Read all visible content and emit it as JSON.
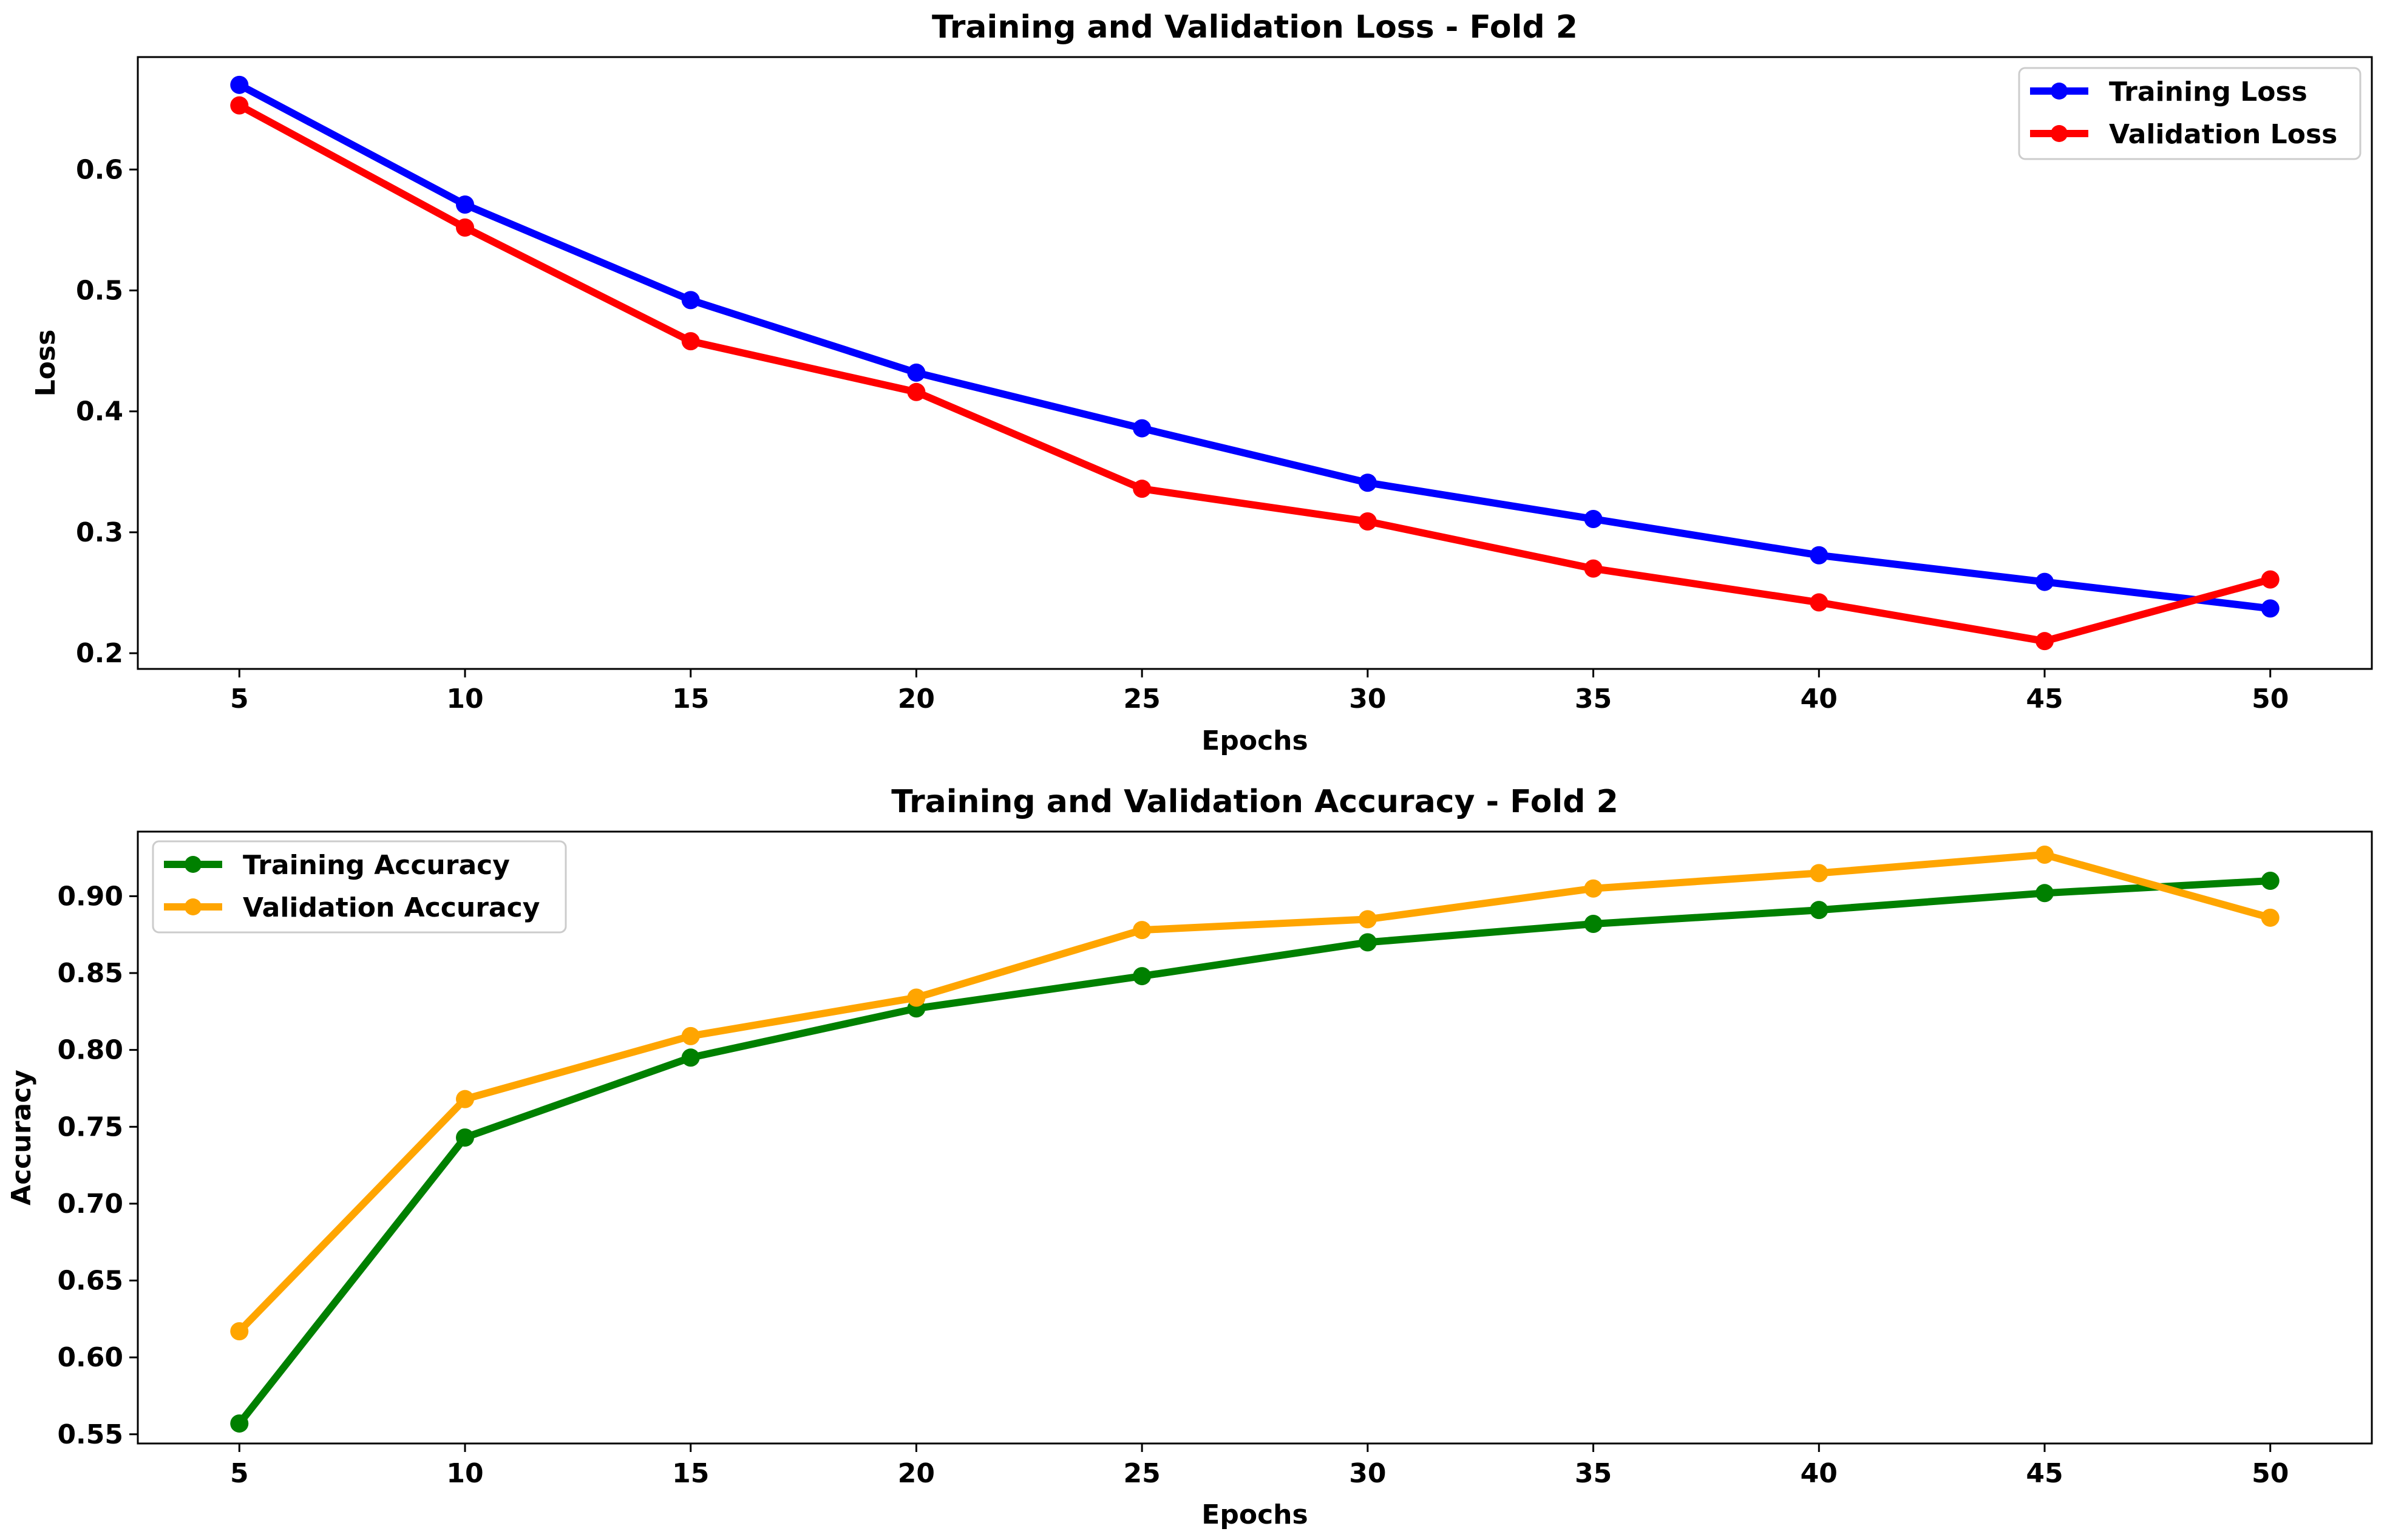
{
  "chart_data": [
    {
      "type": "line",
      "title": "Training and Validation Loss - Fold 2",
      "xlabel": "Epochs",
      "ylabel": "Loss",
      "x": [
        5,
        10,
        15,
        20,
        25,
        30,
        35,
        40,
        45,
        50
      ],
      "xlim": [
        2.75,
        52.25
      ],
      "ylim": [
        0.187,
        0.693
      ],
      "yticks": [
        0.2,
        0.3,
        0.4,
        0.5,
        0.6
      ],
      "ytick_labels": [
        "0.2",
        "0.3",
        "0.4",
        "0.5",
        "0.6"
      ],
      "legend_position": "top-right",
      "series": [
        {
          "name": "Training Loss",
          "color": "#0000ff",
          "values": [
            0.67,
            0.571,
            0.492,
            0.432,
            0.386,
            0.341,
            0.311,
            0.281,
            0.259,
            0.237
          ]
        },
        {
          "name": "Validation Loss",
          "color": "#ff0000",
          "values": [
            0.653,
            0.552,
            0.458,
            0.416,
            0.336,
            0.309,
            0.27,
            0.242,
            0.21,
            0.261
          ]
        }
      ]
    },
    {
      "type": "line",
      "title": "Training and Validation Accuracy - Fold 2",
      "xlabel": "Epochs",
      "ylabel": "Accuracy",
      "x": [
        5,
        10,
        15,
        20,
        25,
        30,
        35,
        40,
        45,
        50
      ],
      "xlim": [
        2.75,
        52.25
      ],
      "ylim": [
        0.544,
        0.942
      ],
      "yticks": [
        0.55,
        0.6,
        0.65,
        0.7,
        0.75,
        0.8,
        0.85,
        0.9
      ],
      "ytick_labels": [
        "0.55",
        "0.60",
        "0.65",
        "0.70",
        "0.75",
        "0.80",
        "0.85",
        "0.90"
      ],
      "legend_position": "top-left",
      "series": [
        {
          "name": "Training Accuracy",
          "color": "#008000",
          "values": [
            0.557,
            0.743,
            0.795,
            0.827,
            0.848,
            0.87,
            0.882,
            0.891,
            0.902,
            0.91
          ]
        },
        {
          "name": "Validation Accuracy",
          "color": "#ffa500",
          "values": [
            0.617,
            0.768,
            0.809,
            0.834,
            0.878,
            0.885,
            0.905,
            0.915,
            0.927,
            0.886
          ]
        }
      ]
    }
  ]
}
